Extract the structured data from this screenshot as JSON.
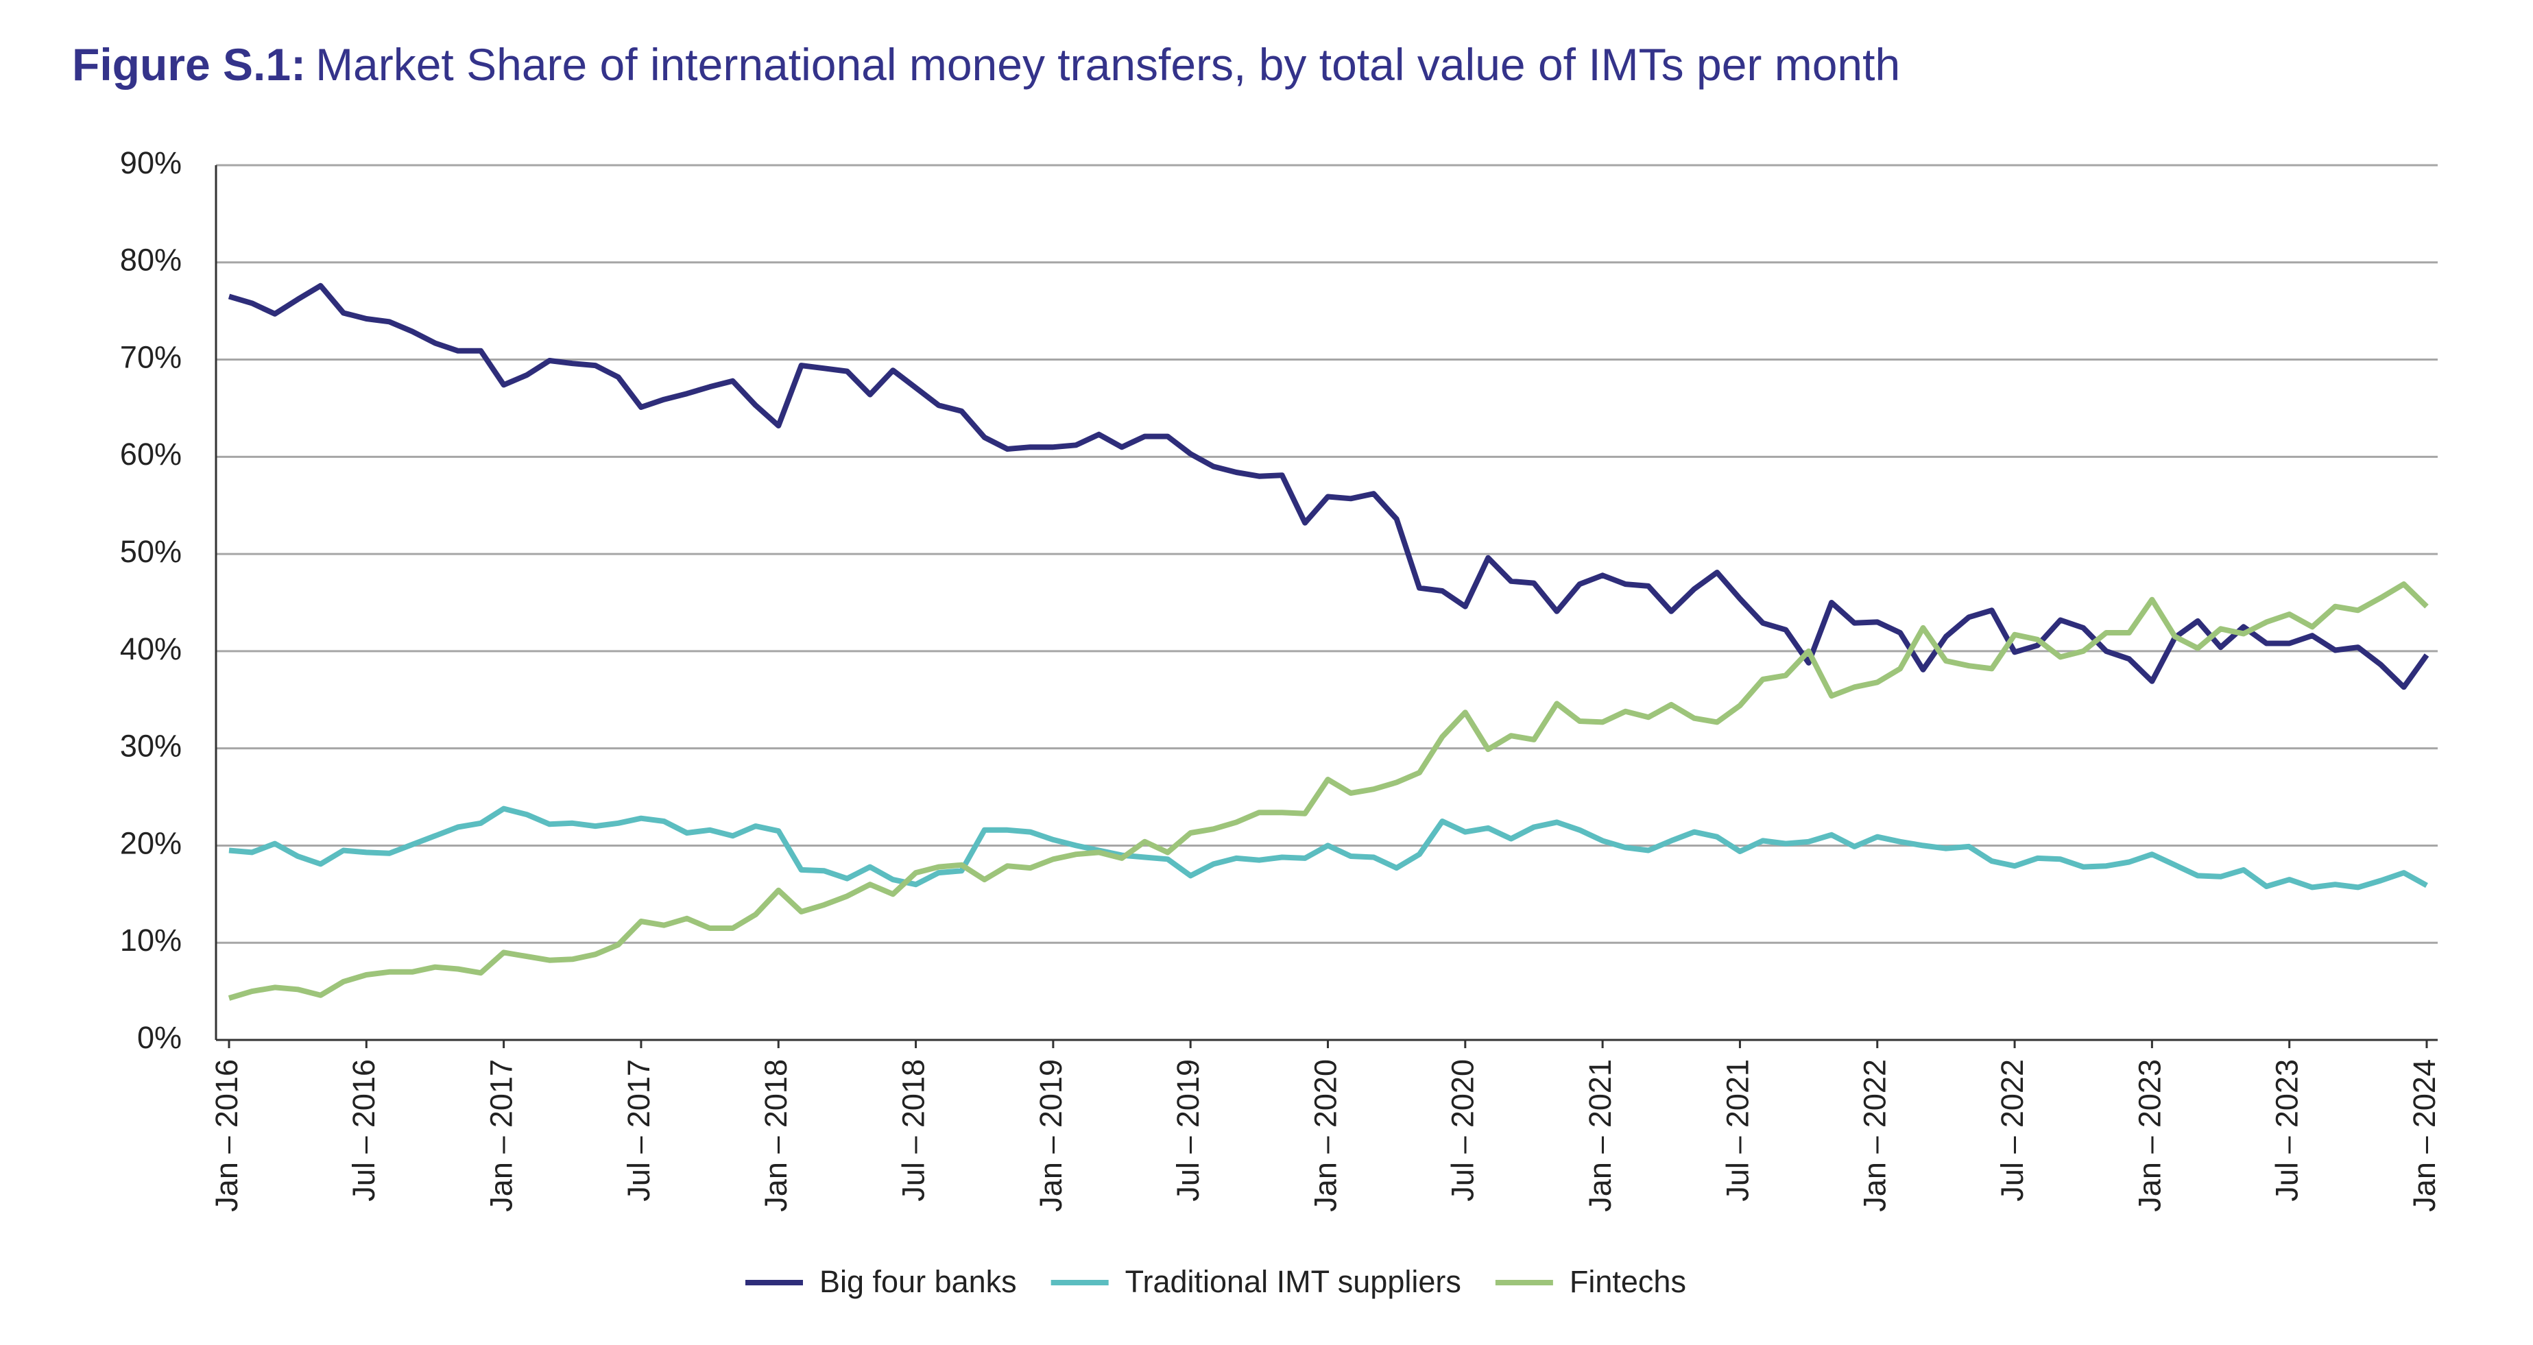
{
  "chart_data": {
    "type": "line",
    "figure_label": "Figure S.1:",
    "title": "Market Share of international money transfers, by total value of IMTs per month",
    "categories": [
      "Jan – 2016",
      null,
      null,
      null,
      null,
      null,
      "Jul – 2016",
      null,
      null,
      null,
      null,
      null,
      "Jan – 2017",
      null,
      null,
      null,
      null,
      null,
      "Jul – 2017",
      null,
      null,
      null,
      null,
      null,
      "Jan – 2018",
      null,
      null,
      null,
      null,
      null,
      "Jul – 2018",
      null,
      null,
      null,
      null,
      null,
      "Jan – 2019",
      null,
      null,
      null,
      null,
      null,
      "Jul – 2019",
      null,
      null,
      null,
      null,
      null,
      "Jan – 2020",
      null,
      null,
      null,
      null,
      null,
      "Jul – 2020",
      null,
      null,
      null,
      null,
      null,
      "Jan – 2021",
      null,
      null,
      null,
      null,
      null,
      "Jul – 2021",
      null,
      null,
      null,
      null,
      null,
      "Jan – 2022",
      null,
      null,
      null,
      null,
      null,
      "Jul – 2022",
      null,
      null,
      null,
      null,
      null,
      "Jan – 2023",
      null,
      null,
      null,
      null,
      null,
      "Jul – 2023",
      null,
      null,
      null,
      null,
      null,
      "Jan – 2024"
    ],
    "series": [
      {
        "name": "Big four banks",
        "color": "#2e2d7a",
        "values": [
          76.5,
          75.8,
          74.7,
          76.2,
          77.6,
          74.8,
          74.2,
          73.9,
          72.9,
          71.7,
          70.9,
          70.9,
          67.4,
          68.4,
          69.9,
          69.6,
          69.4,
          68.2,
          65.1,
          65.9,
          66.5,
          67.2,
          67.8,
          65.3,
          63.2,
          69.4,
          69.1,
          68.8,
          66.4,
          68.9,
          67.1,
          65.3,
          64.7,
          62.0,
          60.8,
          61.0,
          61.0,
          61.2,
          62.3,
          61.0,
          62.1,
          62.1,
          60.3,
          59.0,
          58.4,
          58.0,
          58.1,
          53.2,
          55.9,
          55.7,
          56.2,
          53.6,
          46.5,
          46.2,
          44.6,
          49.6,
          47.2,
          47.0,
          44.1,
          46.9,
          47.8,
          46.9,
          46.7,
          44.1,
          46.4,
          48.1,
          45.4,
          42.9,
          42.2,
          38.8,
          45.0,
          42.9,
          43.0,
          41.9,
          38.1,
          41.5,
          43.5,
          44.2,
          39.9,
          40.6,
          43.2,
          42.4,
          40.0,
          39.2,
          36.9,
          41.4,
          43.1,
          40.4,
          42.5,
          40.8,
          40.8,
          41.6,
          40.1,
          40.4,
          38.6,
          36.3,
          39.6
        ]
      },
      {
        "name": "Traditional IMT suppliers",
        "color": "#5bbdc0",
        "values": [
          19.5,
          19.3,
          20.2,
          18.9,
          18.1,
          19.5,
          19.3,
          19.2,
          20.1,
          21.0,
          21.9,
          22.3,
          23.8,
          23.2,
          22.2,
          22.3,
          22.0,
          22.3,
          22.8,
          22.5,
          21.3,
          21.6,
          21.0,
          22.0,
          21.5,
          17.5,
          17.4,
          16.6,
          17.8,
          16.5,
          16.0,
          17.2,
          17.4,
          21.6,
          21.6,
          21.4,
          20.6,
          20.0,
          19.5,
          19.0,
          18.8,
          18.6,
          16.9,
          18.1,
          18.7,
          18.5,
          18.8,
          18.7,
          20.0,
          18.9,
          18.8,
          17.7,
          19.1,
          22.5,
          21.4,
          21.8,
          20.7,
          21.9,
          22.4,
          21.6,
          20.5,
          19.8,
          19.5,
          20.5,
          21.4,
          20.9,
          19.4,
          20.5,
          20.2,
          20.4,
          21.1,
          19.9,
          20.9,
          20.4,
          20.0,
          19.7,
          19.9,
          18.4,
          17.9,
          18.7,
          18.6,
          17.8,
          17.9,
          18.3,
          19.1,
          18.0,
          16.9,
          16.8,
          17.5,
          15.8,
          16.5,
          15.7,
          16.0,
          15.7,
          16.4,
          17.2,
          15.9
        ]
      },
      {
        "name": "Fintechs",
        "color": "#9dc47a",
        "values": [
          4.3,
          5.0,
          5.4,
          5.2,
          4.6,
          6.0,
          6.7,
          7.0,
          7.0,
          7.5,
          7.3,
          6.9,
          9.0,
          8.6,
          8.2,
          8.3,
          8.8,
          9.8,
          12.2,
          11.8,
          12.5,
          11.5,
          11.5,
          12.9,
          15.4,
          13.2,
          13.9,
          14.8,
          16.0,
          15.0,
          17.2,
          17.8,
          18.0,
          16.5,
          17.9,
          17.7,
          18.6,
          19.1,
          19.3,
          18.7,
          20.4,
          19.3,
          21.3,
          21.7,
          22.4,
          23.4,
          23.4,
          23.3,
          26.8,
          25.4,
          25.8,
          26.5,
          27.5,
          31.2,
          33.7,
          29.9,
          31.3,
          30.9,
          34.6,
          32.8,
          32.7,
          33.8,
          33.2,
          34.5,
          33.1,
          32.7,
          34.4,
          37.1,
          37.5,
          40.0,
          35.4,
          36.3,
          36.8,
          38.2,
          42.4,
          39.0,
          38.5,
          38.2,
          41.7,
          41.2,
          39.4,
          40.0,
          41.9,
          41.9,
          45.3,
          41.5,
          40.3,
          42.3,
          41.8,
          43.0,
          43.8,
          42.5,
          44.6,
          44.2,
          45.5,
          46.9,
          44.6
        ]
      }
    ],
    "ylim": [
      0,
      90
    ],
    "yticks": [
      {
        "value": 0,
        "label": "0%"
      },
      {
        "value": 10,
        "label": "10%"
      },
      {
        "value": 20,
        "label": "20%"
      },
      {
        "value": 30,
        "label": "30%"
      },
      {
        "value": 40,
        "label": "40%"
      },
      {
        "value": 50,
        "label": "50%"
      },
      {
        "value": 60,
        "label": "60%"
      },
      {
        "value": 70,
        "label": "70%"
      },
      {
        "value": 80,
        "label": "80%"
      },
      {
        "value": 90,
        "label": "90%"
      }
    ],
    "grid": true,
    "legend": "bottom"
  }
}
